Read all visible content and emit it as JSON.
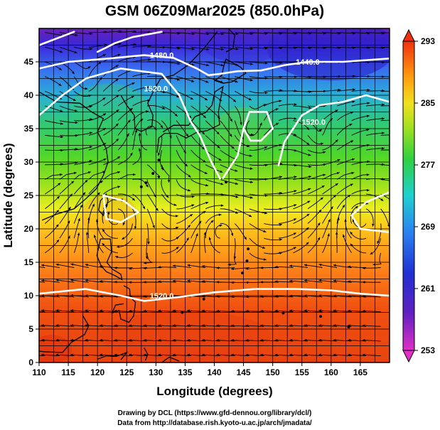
{
  "title": "GSM 06Z09Mar2025 (850.0hPa)",
  "x_axis": {
    "label": "Longitude (degrees)",
    "range": [
      110,
      170
    ],
    "ticks": [
      "110",
      "115",
      "120",
      "125",
      "130",
      "135",
      "140",
      "145",
      "150",
      "155",
      "160",
      "165"
    ]
  },
  "y_axis": {
    "label": "Latitude  (degrees)",
    "range": [
      0,
      50
    ],
    "ticks": [
      "0",
      "5",
      "10",
      "15",
      "20",
      "25",
      "30",
      "35",
      "40",
      "45"
    ]
  },
  "colorbar": {
    "range": [
      253,
      293
    ],
    "ticks": [
      "293",
      "285",
      "277",
      "269",
      "261",
      "253"
    ]
  },
  "contour_labels": [
    {
      "text": "1480.0",
      "lon": 131,
      "lat": 46
    },
    {
      "text": "1440.0",
      "lon": 156,
      "lat": 45
    },
    {
      "text": "1520.0",
      "lon": 130,
      "lat": 41
    },
    {
      "text": "1520.0",
      "lon": 157,
      "lat": 36
    },
    {
      "text": "1520.0",
      "lon": 131,
      "lat": 10
    }
  ],
  "footer": {
    "line1": "Drawing by DCL (https://www.gfd-dennou.org/library/dcl/)",
    "line2": "Data from http://database.rish.kyoto-u.ac.jp/arch/jmadata/"
  }
}
